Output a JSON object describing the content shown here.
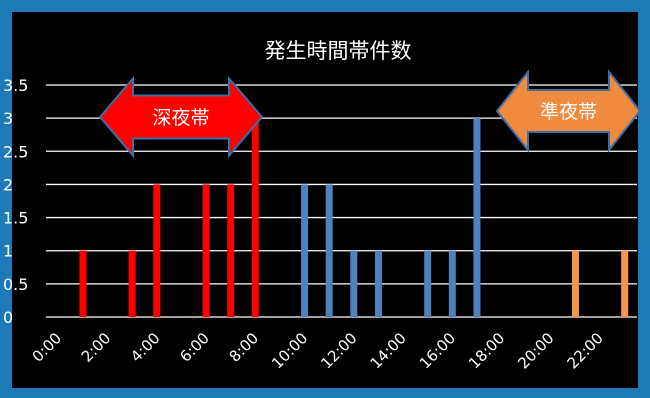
{
  "chart_data": {
    "type": "bar",
    "title": "発生時間帯件数",
    "x_tick_labels": [
      "0:00",
      "2:00",
      "4:00",
      "6:00",
      "8:00",
      "10:00",
      "12:00",
      "14:00",
      "16:00",
      "18:00",
      "20:00",
      "22:00"
    ],
    "hours": [
      0,
      1,
      2,
      3,
      4,
      5,
      6,
      7,
      8,
      9,
      10,
      11,
      12,
      13,
      14,
      15,
      16,
      17,
      18,
      19,
      20,
      21,
      22,
      23
    ],
    "values": [
      0,
      1,
      0,
      1,
      2,
      0,
      2,
      2,
      3,
      0,
      2,
      2,
      1,
      1,
      0,
      1,
      1,
      3,
      0,
      0,
      0,
      1,
      0,
      1
    ],
    "colors": [
      "#ff0000",
      "#ff0000",
      "#ff0000",
      "#ff0000",
      "#ff0000",
      "#ff0000",
      "#ff0000",
      "#ff0000",
      "#ff0000",
      "#ff0000",
      "#4f81bd",
      "#4f81bd",
      "#4f81bd",
      "#4f81bd",
      "#4f81bd",
      "#4f81bd",
      "#4f81bd",
      "#4f81bd",
      "#f79646",
      "#f79646",
      "#f79646",
      "#f79646",
      "#f79646",
      "#f79646"
    ],
    "ylim": [
      0,
      3.5
    ],
    "y_ticks": [
      "0",
      "0.5",
      "1",
      "1.5",
      "2",
      "2.5",
      "3",
      "3.5"
    ],
    "grid": true,
    "annotations": [
      {
        "text": "深夜帯",
        "fill": "#ff0000"
      },
      {
        "text": "準夜帯",
        "fill": "#ef8a3f"
      }
    ]
  }
}
